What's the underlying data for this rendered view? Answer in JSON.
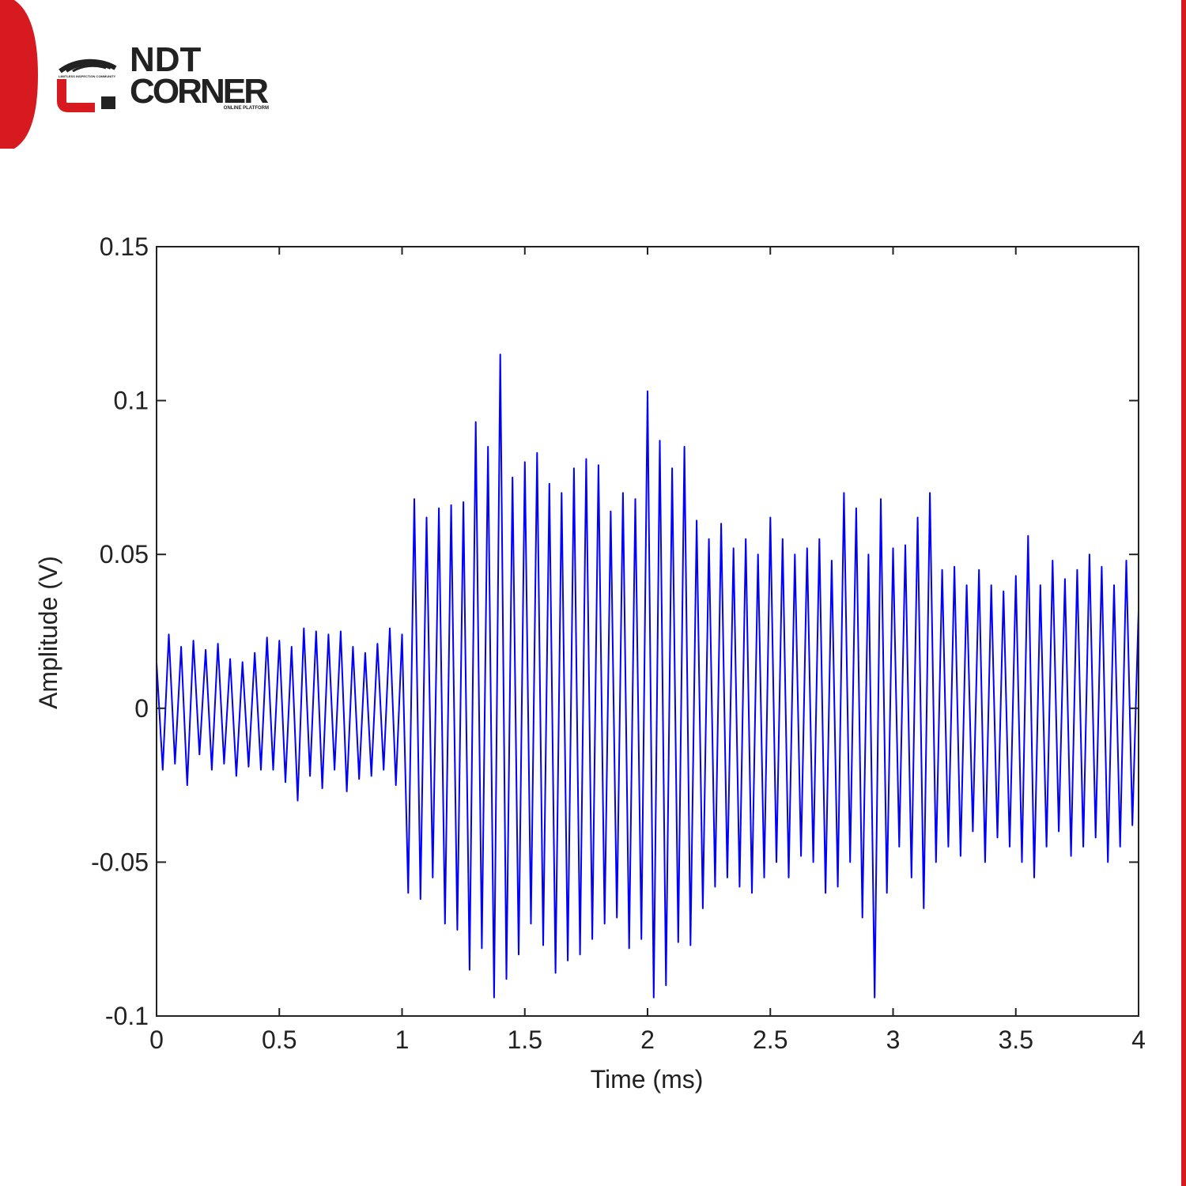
{
  "logo": {
    "line1": "NDT",
    "line2": "CORNER",
    "tagline": "LIMITLESS INSPECTION COMMUNITY",
    "subtitle": "ONLINE PLATFORM"
  },
  "chart_data": {
    "type": "line",
    "xlabel": "Time (ms)",
    "ylabel": "Amplitude (V)",
    "color": "#0000ff",
    "xlim": [
      0,
      4
    ],
    "xticks": [
      0,
      0.5,
      1,
      1.5,
      2,
      2.5,
      3,
      3.5,
      4
    ],
    "ylim": [
      -0.1,
      0.15
    ],
    "yticks": [
      -0.1,
      -0.05,
      0,
      0.05,
      0.1,
      0.15
    ],
    "x": [
      0,
      0.025,
      0.05,
      0.075,
      0.1,
      0.125,
      0.15,
      0.175,
      0.2,
      0.225,
      0.25,
      0.275,
      0.3,
      0.325,
      0.35,
      0.375,
      0.4,
      0.425,
      0.45,
      0.475,
      0.5,
      0.525,
      0.55,
      0.575,
      0.6,
      0.625,
      0.65,
      0.675,
      0.7,
      0.725,
      0.75,
      0.775,
      0.8,
      0.825,
      0.85,
      0.875,
      0.9,
      0.925,
      0.95,
      0.975,
      1,
      1.025,
      1.05,
      1.075,
      1.1,
      1.125,
      1.15,
      1.175,
      1.2,
      1.225,
      1.25,
      1.275,
      1.3,
      1.325,
      1.35,
      1.375,
      1.4,
      1.425,
      1.45,
      1.475,
      1.5,
      1.525,
      1.55,
      1.575,
      1.6,
      1.625,
      1.65,
      1.675,
      1.7,
      1.725,
      1.75,
      1.775,
      1.8,
      1.825,
      1.85,
      1.875,
      1.9,
      1.925,
      1.95,
      1.975,
      2,
      2.025,
      2.05,
      2.075,
      2.1,
      2.125,
      2.15,
      2.175,
      2.2,
      2.225,
      2.25,
      2.275,
      2.3,
      2.325,
      2.35,
      2.375,
      2.4,
      2.425,
      2.45,
      2.475,
      2.5,
      2.525,
      2.55,
      2.575,
      2.6,
      2.625,
      2.65,
      2.675,
      2.7,
      2.725,
      2.75,
      2.775,
      2.8,
      2.825,
      2.85,
      2.875,
      2.9,
      2.925,
      2.95,
      2.975,
      3,
      3.025,
      3.05,
      3.075,
      3.1,
      3.125,
      3.15,
      3.175,
      3.2,
      3.225,
      3.25,
      3.275,
      3.3,
      3.325,
      3.35,
      3.375,
      3.4,
      3.425,
      3.45,
      3.475,
      3.5,
      3.525,
      3.55,
      3.575,
      3.6,
      3.625,
      3.65,
      3.675,
      3.7,
      3.725,
      3.75,
      3.775,
      3.8,
      3.825,
      3.85,
      3.875,
      3.9,
      3.925,
      3.95,
      3.975,
      4
    ],
    "values": [
      0.015,
      -0.02,
      0.024,
      -0.018,
      0.02,
      -0.025,
      0.022,
      -0.015,
      0.019,
      -0.02,
      0.021,
      -0.018,
      0.016,
      -0.022,
      0.015,
      -0.019,
      0.018,
      -0.02,
      0.023,
      -0.02,
      0.022,
      -0.024,
      0.02,
      -0.03,
      0.026,
      -0.022,
      0.025,
      -0.026,
      0.024,
      -0.02,
      0.025,
      -0.027,
      0.02,
      -0.023,
      0.018,
      -0.022,
      0.021,
      -0.02,
      0.026,
      -0.025,
      0.024,
      -0.06,
      0.068,
      -0.062,
      0.062,
      -0.055,
      0.065,
      -0.07,
      0.066,
      -0.072,
      0.067,
      -0.085,
      0.093,
      -0.078,
      0.085,
      -0.094,
      0.115,
      -0.088,
      0.075,
      -0.08,
      0.08,
      -0.07,
      0.083,
      -0.077,
      0.073,
      -0.086,
      0.07,
      -0.082,
      0.078,
      -0.08,
      0.081,
      -0.075,
      0.079,
      -0.07,
      0.064,
      -0.068,
      0.07,
      -0.078,
      0.068,
      -0.075,
      0.103,
      -0.094,
      0.087,
      -0.09,
      0.078,
      -0.076,
      0.085,
      -0.077,
      0.061,
      -0.065,
      0.055,
      -0.058,
      0.06,
      -0.055,
      0.052,
      -0.058,
      0.055,
      -0.06,
      0.05,
      -0.055,
      0.062,
      -0.05,
      0.055,
      -0.055,
      0.05,
      -0.048,
      0.052,
      -0.05,
      0.055,
      -0.06,
      0.048,
      -0.058,
      0.07,
      -0.05,
      0.065,
      -0.068,
      0.05,
      -0.094,
      0.068,
      -0.06,
      0.052,
      -0.045,
      0.053,
      -0.055,
      0.062,
      -0.065,
      0.07,
      -0.05,
      0.045,
      -0.045,
      0.046,
      -0.048,
      0.04,
      -0.04,
      0.045,
      -0.05,
      0.04,
      -0.042,
      0.038,
      -0.045,
      0.043,
      -0.05,
      0.056,
      -0.055,
      0.04,
      -0.045,
      0.048,
      -0.04,
      0.042,
      -0.048,
      0.045,
      -0.045,
      0.05,
      -0.042,
      0.046,
      -0.05,
      0.04,
      -0.045,
      0.048,
      -0.038,
      0.032
    ]
  }
}
